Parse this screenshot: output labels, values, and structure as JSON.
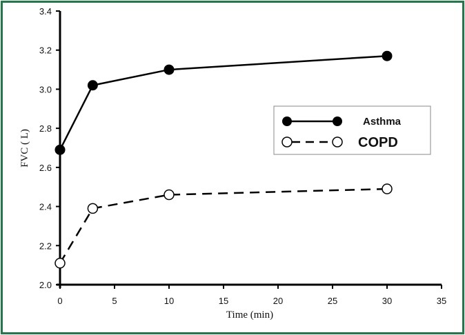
{
  "chart_data": {
    "type": "line",
    "title": "",
    "xlabel": "Time (min)",
    "ylabel": "FVC ( L)",
    "xlim": [
      0,
      35
    ],
    "ylim": [
      2.0,
      3.4
    ],
    "xticks": [
      0,
      5,
      10,
      15,
      20,
      25,
      30,
      35
    ],
    "yticks": [
      2.0,
      2.2,
      2.4,
      2.6,
      2.8,
      3.0,
      3.2,
      3.4
    ],
    "xtick_labels": [
      "0",
      "5",
      "10",
      "15",
      "20",
      "25",
      "30",
      "35"
    ],
    "ytick_labels": [
      "2.0",
      "2.2",
      "2.4",
      "2.6",
      "2.8",
      "3.0",
      "3.2",
      "3.4"
    ],
    "grid": false,
    "legend_position": "right-center",
    "x": [
      0,
      3,
      10,
      30
    ],
    "series": [
      {
        "name": "Asthma",
        "values": [
          2.69,
          3.02,
          3.1,
          3.17
        ],
        "marker": "filled-circle",
        "line": "solid"
      },
      {
        "name": "COPD",
        "values": [
          2.11,
          2.39,
          2.46,
          2.49
        ],
        "marker": "open-circle",
        "line": "dashed"
      }
    ]
  },
  "colors": {
    "border": "#1f7a45",
    "series": "#000000",
    "legend_border": "#888888"
  },
  "labels": {
    "xlabel": "Time (min)",
    "ylabel": "FVC ( L)",
    "legend_asthma": "Asthma",
    "legend_copd": "COPD"
  }
}
